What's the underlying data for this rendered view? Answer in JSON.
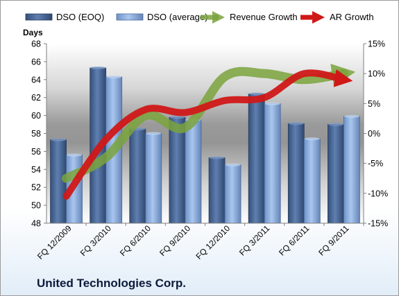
{
  "chart_data": {
    "type": "bar",
    "y_axis_title": "Days",
    "categories": [
      "FQ 12/2009",
      "FQ 3/2010",
      "FQ 6/2010",
      "FQ 9/2010",
      "FQ 12/2010",
      "FQ 3/2011",
      "FQ 6/2011",
      "FQ 9/2011"
    ],
    "series": [
      {
        "name": "DSO (EOQ)",
        "type": "bar",
        "axis": "left",
        "color": "#4a6a9a",
        "values": [
          57.3,
          65.3,
          58.5,
          59.8,
          55.3,
          62.4,
          59.1,
          59.0
        ]
      },
      {
        "name": "DSO (average)",
        "type": "bar",
        "axis": "left",
        "color": "#8fb0e0",
        "values": [
          55.6,
          64.3,
          58.0,
          59.5,
          54.5,
          61.3,
          57.4,
          59.9
        ]
      },
      {
        "name": "Revenue Growth",
        "type": "line",
        "axis": "right",
        "color": "#7aa33c",
        "values": [
          -7.5,
          -4,
          3,
          1,
          9.5,
          10,
          9,
          10
        ]
      },
      {
        "name": "AR Growth",
        "type": "line",
        "axis": "right",
        "color": "#d01818",
        "values": [
          -10.5,
          -1,
          4,
          3.5,
          5.5,
          6,
          10,
          9
        ]
      }
    ],
    "y_left": {
      "range": [
        48,
        68
      ],
      "ticks": [
        "48",
        "50",
        "52",
        "54",
        "56",
        "58",
        "60",
        "62",
        "64",
        "66",
        "68"
      ]
    },
    "y_right": {
      "range": [
        -15,
        15
      ],
      "ticks": [
        "-15%",
        "-10%",
        "-5%",
        "0%",
        "5%",
        "10%",
        "15%"
      ]
    },
    "grid": false,
    "legend_position": "top"
  },
  "company_name": "United Technologies Corp."
}
